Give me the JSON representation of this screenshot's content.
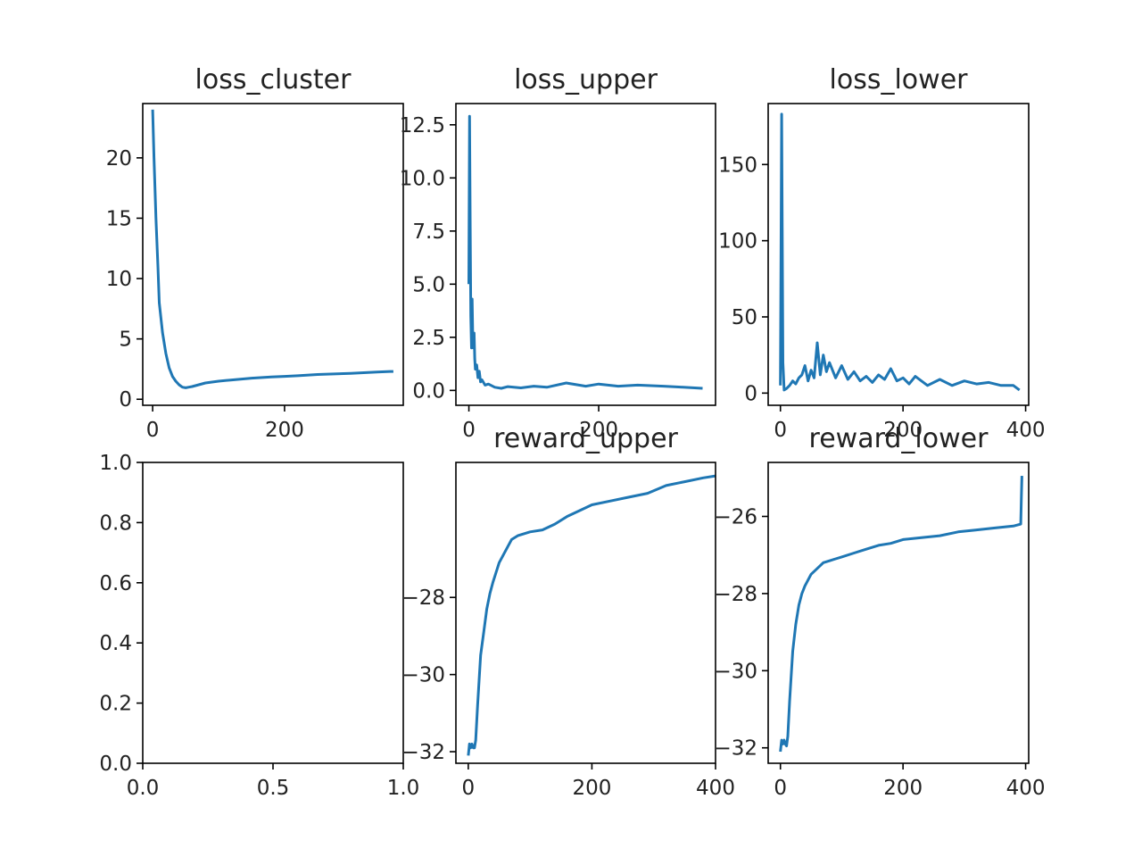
{
  "chart_data": [
    {
      "type": "line",
      "title": "loss_cluster",
      "xlim": [
        -15,
        380
      ],
      "ylim": [
        -0.5,
        24.5
      ],
      "xticks": [
        0,
        200
      ],
      "yticks": [
        0,
        5,
        10,
        15,
        20
      ],
      "series": [
        {
          "x": [
            0,
            2,
            5,
            8,
            10,
            15,
            20,
            25,
            30,
            35,
            40,
            45,
            50,
            55,
            60,
            70,
            80,
            100,
            120,
            150,
            180,
            200,
            220,
            250,
            280,
            300,
            320,
            340,
            360,
            365
          ],
          "y": [
            24,
            20,
            15,
            11,
            8,
            5.5,
            3.8,
            2.6,
            1.9,
            1.5,
            1.2,
            1.0,
            0.95,
            1.0,
            1.05,
            1.2,
            1.35,
            1.5,
            1.6,
            1.75,
            1.85,
            1.9,
            1.95,
            2.05,
            2.1,
            2.15,
            2.2,
            2.25,
            2.3,
            2.3
          ]
        }
      ]
    },
    {
      "type": "line",
      "title": "loss_upper",
      "xlim": [
        -20,
        380
      ],
      "ylim": [
        -0.7,
        13.5
      ],
      "xticks": [
        0,
        200
      ],
      "yticks": [
        0.0,
        2.5,
        5.0,
        7.5,
        10.0,
        12.5
      ],
      "series": [
        {
          "x": [
            0,
            1,
            2,
            3,
            4,
            5,
            6,
            7,
            8,
            9,
            10,
            12,
            14,
            16,
            18,
            20,
            25,
            30,
            40,
            50,
            60,
            80,
            100,
            120,
            150,
            180,
            200,
            230,
            260,
            300,
            330,
            360
          ],
          "y": [
            5.0,
            12.9,
            8.0,
            3.5,
            2.0,
            4.3,
            2.5,
            2.0,
            2.7,
            1.5,
            1.0,
            1.2,
            0.6,
            0.9,
            0.4,
            0.5,
            0.25,
            0.3,
            0.15,
            0.1,
            0.18,
            0.12,
            0.2,
            0.15,
            0.35,
            0.2,
            0.3,
            0.2,
            0.25,
            0.2,
            0.15,
            0.1
          ]
        }
      ]
    },
    {
      "type": "line",
      "title": "loss_lower",
      "xlim": [
        -20,
        405
      ],
      "ylim": [
        -8,
        190
      ],
      "xticks": [
        0,
        200,
        400
      ],
      "yticks": [
        0,
        50,
        100,
        150
      ],
      "series": [
        {
          "x": [
            0,
            2,
            4,
            6,
            10,
            15,
            20,
            25,
            30,
            35,
            40,
            45,
            50,
            55,
            60,
            65,
            70,
            75,
            80,
            90,
            100,
            110,
            120,
            130,
            140,
            150,
            160,
            170,
            180,
            190,
            200,
            210,
            220,
            240,
            260,
            280,
            300,
            320,
            340,
            360,
            380,
            390
          ],
          "y": [
            5,
            183,
            20,
            2,
            3,
            5,
            8,
            6,
            10,
            12,
            18,
            8,
            15,
            10,
            33,
            12,
            25,
            14,
            20,
            10,
            18,
            9,
            14,
            8,
            11,
            7,
            12,
            9,
            16,
            8,
            10,
            6,
            11,
            5,
            9,
            5,
            8,
            6,
            7,
            5,
            5,
            2
          ]
        }
      ]
    },
    {
      "type": "line",
      "title": "",
      "xlim": [
        0,
        1
      ],
      "ylim": [
        0,
        1
      ],
      "xticks": [
        0.0,
        0.5,
        1.0
      ],
      "yticks": [
        0.0,
        0.2,
        0.4,
        0.6,
        0.8,
        1.0
      ],
      "series": []
    },
    {
      "type": "line",
      "title": "reward_upper",
      "xlim": [
        -20,
        400
      ],
      "ylim": [
        -32.3,
        -24.5
      ],
      "xticks": [
        0,
        200,
        400
      ],
      "yticks": [
        -28,
        -30,
        -32
      ],
      "series": [
        {
          "x": [
            0,
            2,
            4,
            6,
            8,
            10,
            12,
            15,
            20,
            25,
            30,
            35,
            40,
            50,
            60,
            70,
            80,
            90,
            100,
            120,
            140,
            160,
            180,
            200,
            230,
            260,
            290,
            320,
            350,
            380,
            400
          ],
          "y": [
            -32.1,
            -31.8,
            -31.9,
            -31.8,
            -31.9,
            -31.9,
            -31.7,
            -30.8,
            -29.5,
            -28.9,
            -28.3,
            -27.9,
            -27.6,
            -27.1,
            -26.8,
            -26.5,
            -26.4,
            -26.35,
            -26.3,
            -26.25,
            -26.1,
            -25.9,
            -25.75,
            -25.6,
            -25.5,
            -25.4,
            -25.3,
            -25.1,
            -25.0,
            -24.9,
            -24.85
          ]
        }
      ]
    },
    {
      "type": "line",
      "title": "reward_lower",
      "xlim": [
        -20,
        405
      ],
      "ylim": [
        -32.4,
        -24.6
      ],
      "xticks": [
        0,
        200,
        400
      ],
      "yticks": [
        -26,
        -28,
        -30,
        -32
      ],
      "series": [
        {
          "x": [
            0,
            2,
            4,
            6,
            8,
            10,
            12,
            15,
            20,
            25,
            30,
            35,
            40,
            50,
            60,
            70,
            80,
            90,
            100,
            120,
            140,
            160,
            180,
            200,
            230,
            260,
            290,
            320,
            350,
            380,
            392,
            393,
            394
          ],
          "y": [
            -32.1,
            -31.8,
            -31.9,
            -31.8,
            -31.9,
            -31.95,
            -31.7,
            -30.8,
            -29.5,
            -28.8,
            -28.3,
            -28.0,
            -27.8,
            -27.5,
            -27.35,
            -27.2,
            -27.15,
            -27.1,
            -27.05,
            -26.95,
            -26.85,
            -26.75,
            -26.7,
            -26.6,
            -26.55,
            -26.5,
            -26.4,
            -26.35,
            -26.3,
            -26.25,
            -26.2,
            -25.5,
            -24.95
          ]
        }
      ]
    }
  ]
}
